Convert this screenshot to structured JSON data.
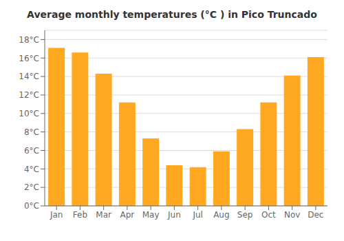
{
  "chart_data": {
    "type": "bar",
    "title": "Average monthly temperatures (°C ) in Pico Truncado",
    "categories": [
      "Jan",
      "Feb",
      "Mar",
      "Apr",
      "May",
      "Jun",
      "Jul",
      "Aug",
      "Sep",
      "Oct",
      "Nov",
      "Dec"
    ],
    "values": [
      17.1,
      16.6,
      14.3,
      11.2,
      7.3,
      4.4,
      4.2,
      5.9,
      8.3,
      11.2,
      14.1,
      16.1
    ],
    "color": "#FFA820",
    "ylim": [
      0,
      19
    ],
    "yticks": [
      {
        "value": 0,
        "label": "0°C"
      },
      {
        "value": 2,
        "label": "2°C"
      },
      {
        "value": 4,
        "label": "4°C"
      },
      {
        "value": 6,
        "label": "6°C"
      },
      {
        "value": 8,
        "label": "8°C"
      },
      {
        "value": 10,
        "label": "10°C"
      },
      {
        "value": 12,
        "label": "12°C"
      },
      {
        "value": 14,
        "label": "14°C"
      },
      {
        "value": 16,
        "label": "16°C"
      },
      {
        "value": 18,
        "label": "18°C"
      }
    ],
    "grid": true
  }
}
